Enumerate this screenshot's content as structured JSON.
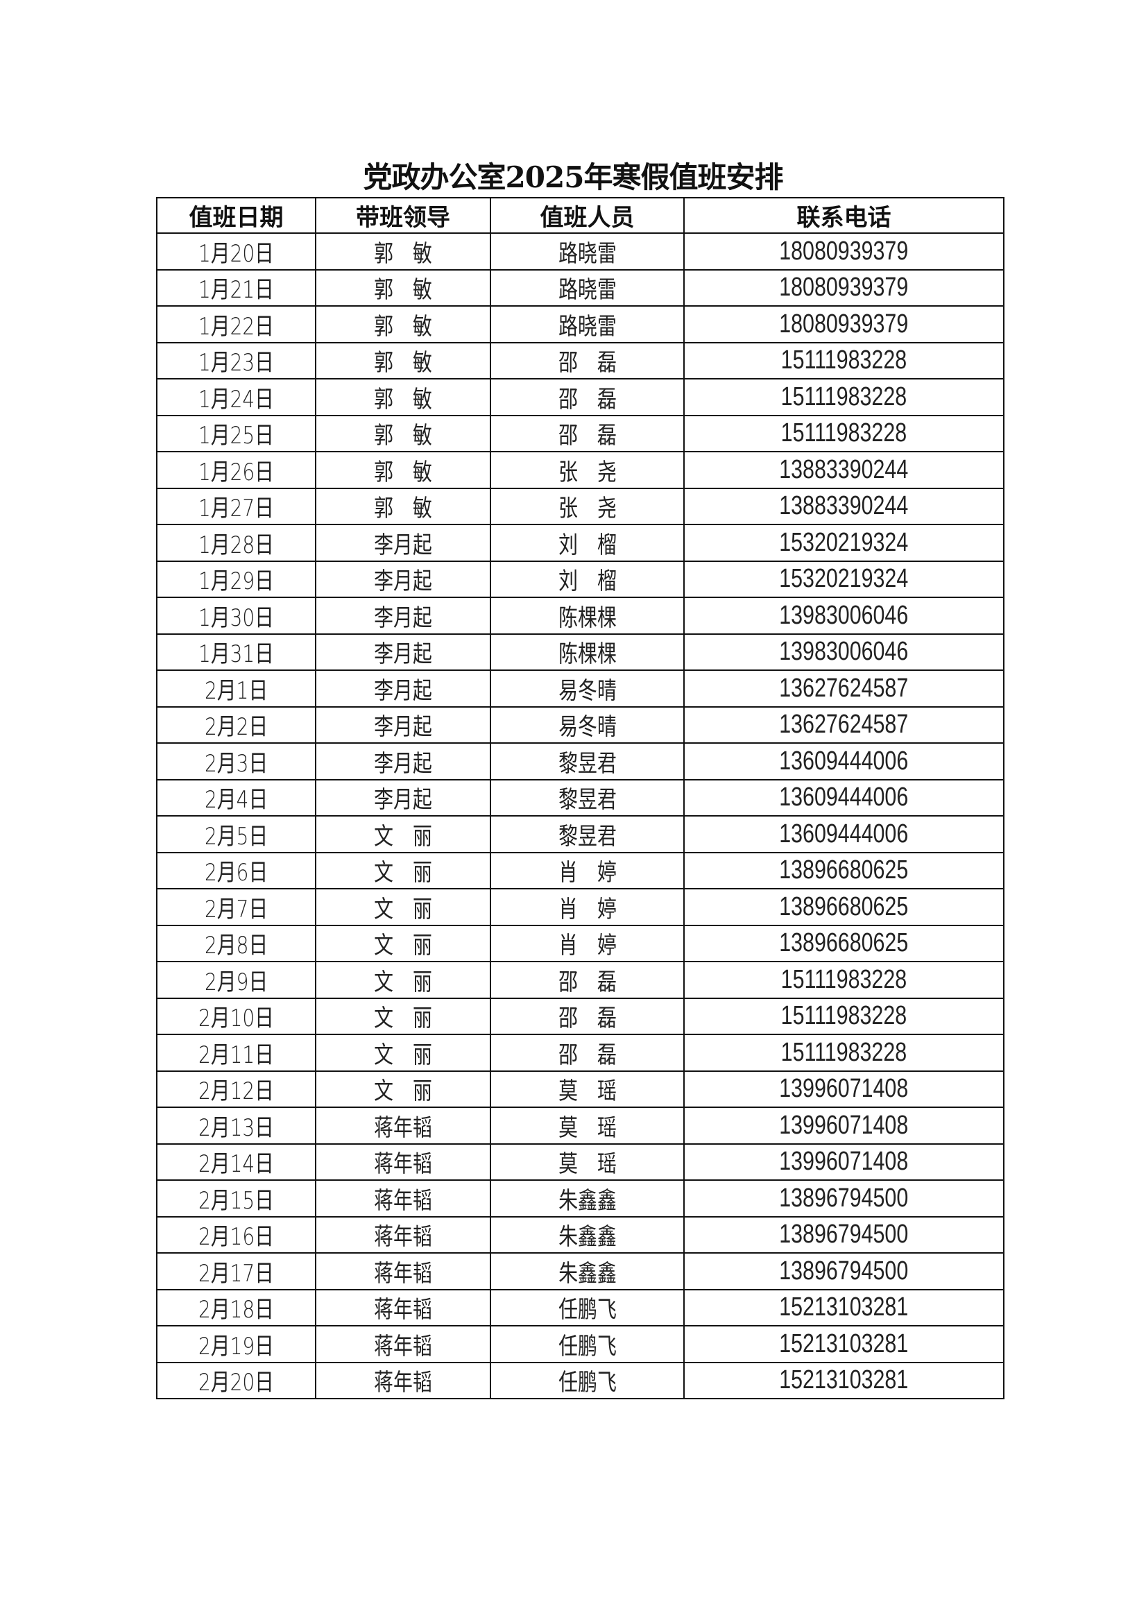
{
  "title": "党政办公室2025年寒假值班安排",
  "headers": [
    "值班日期",
    "带班领导",
    "值班人员",
    "联系电话"
  ],
  "rows": [
    [
      "1月20日",
      "郭　敏",
      "路晓雷",
      "18080939379"
    ],
    [
      "1月21日",
      "郭　敏",
      "路晓雷",
      "18080939379"
    ],
    [
      "1月22日",
      "郭　敏",
      "路晓雷",
      "18080939379"
    ],
    [
      "1月23日",
      "郭　敏",
      "邵　磊",
      "15111983228"
    ],
    [
      "1月24日",
      "郭　敏",
      "邵　磊",
      "15111983228"
    ],
    [
      "1月25日",
      "郭　敏",
      "邵　磊",
      "15111983228"
    ],
    [
      "1月26日",
      "郭　敏",
      "张　尧",
      "13883390244"
    ],
    [
      "1月27日",
      "郭　敏",
      "张　尧",
      "13883390244"
    ],
    [
      "1月28日",
      "李月起",
      "刘　榴",
      "15320219324"
    ],
    [
      "1月29日",
      "李月起",
      "刘　榴",
      "15320219324"
    ],
    [
      "1月30日",
      "李月起",
      "陈棵棵",
      "13983006046"
    ],
    [
      "1月31日",
      "李月起",
      "陈棵棵",
      "13983006046"
    ],
    [
      "2月1日",
      "李月起",
      "易冬晴",
      "13627624587"
    ],
    [
      "2月2日",
      "李月起",
      "易冬晴",
      "13627624587"
    ],
    [
      "2月3日",
      "李月起",
      "黎昱君",
      "13609444006"
    ],
    [
      "2月4日",
      "李月起",
      "黎昱君",
      "13609444006"
    ],
    [
      "2月5日",
      "文　丽",
      "黎昱君",
      "13609444006"
    ],
    [
      "2月6日",
      "文　丽",
      "肖　婷",
      "13896680625"
    ],
    [
      "2月7日",
      "文　丽",
      "肖　婷",
      "13896680625"
    ],
    [
      "2月8日",
      "文　丽",
      "肖　婷",
      "13896680625"
    ],
    [
      "2月9日",
      "文　丽",
      "邵　磊",
      "15111983228"
    ],
    [
      "2月10日",
      "文　丽",
      "邵　磊",
      "15111983228"
    ],
    [
      "2月11日",
      "文　丽",
      "邵　磊",
      "15111983228"
    ],
    [
      "2月12日",
      "文　丽",
      "莫　瑶",
      "13996071408"
    ],
    [
      "2月13日",
      "蒋年韬",
      "莫　瑶",
      "13996071408"
    ],
    [
      "2月14日",
      "蒋年韬",
      "莫　瑶",
      "13996071408"
    ],
    [
      "2月15日",
      "蒋年韬",
      "朱鑫鑫",
      "13896794500"
    ],
    [
      "2月16日",
      "蒋年韬",
      "朱鑫鑫",
      "13896794500"
    ],
    [
      "2月17日",
      "蒋年韬",
      "朱鑫鑫",
      "13896794500"
    ],
    [
      "2月18日",
      "蒋年韬",
      "任鹏飞",
      "15213103281"
    ],
    [
      "2月19日",
      "蒋年韬",
      "任鹏飞",
      "15213103281"
    ],
    [
      "2月20日",
      "蒋年韬",
      "任鹏飞",
      "15213103281"
    ]
  ]
}
